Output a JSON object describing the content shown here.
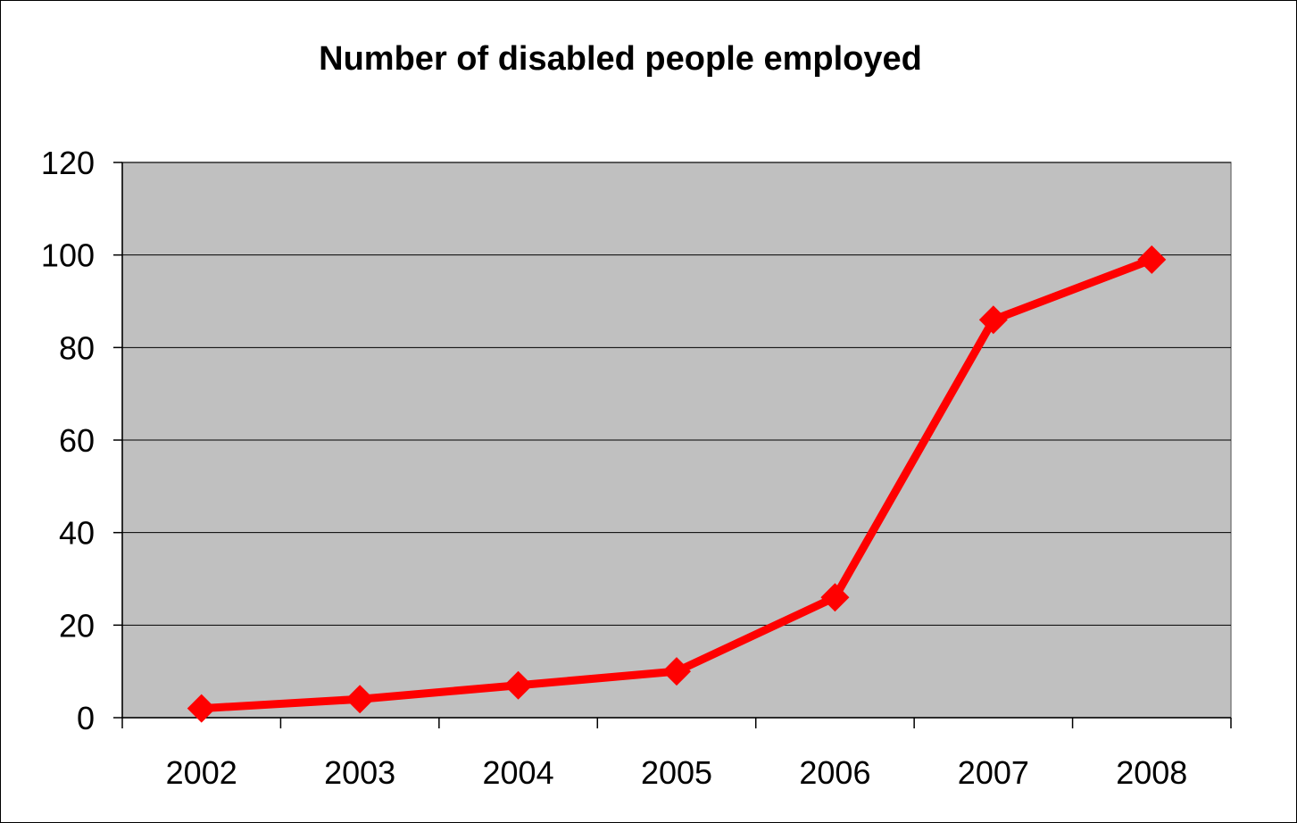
{
  "chart_data": {
    "type": "line",
    "title": "Number of disabled people employed",
    "xlabel": "",
    "ylabel": "",
    "categories": [
      "2002",
      "2003",
      "2004",
      "2005",
      "2006",
      "2007",
      "2008"
    ],
    "series": [
      {
        "values": [
          2,
          4,
          7,
          10,
          26,
          86,
          99
        ],
        "color": "#ff0000",
        "marker": "diamond"
      }
    ],
    "ylim": [
      0,
      120
    ],
    "yticks": [
      0,
      20,
      40,
      60,
      80,
      100,
      120
    ],
    "grid": "horizontal",
    "plot_background": "#c0c0c0",
    "legend": "none"
  }
}
